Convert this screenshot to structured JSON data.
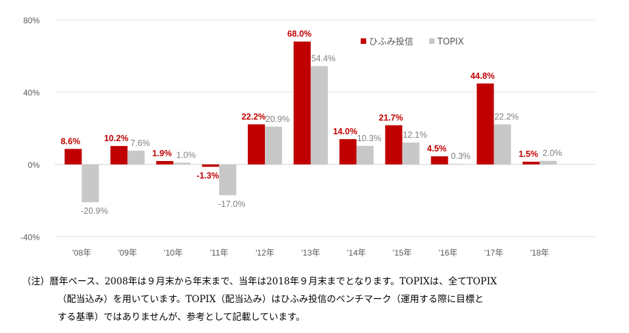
{
  "chart_data": {
    "type": "bar",
    "title": "",
    "xlabel": "",
    "ylabel": "",
    "ylim": [
      -40,
      80
    ],
    "yticks": [
      -40,
      0,
      40,
      80
    ],
    "ytick_labels": [
      "-40%",
      "0%",
      "40%",
      "80%"
    ],
    "categories": [
      "'08年",
      "'09年",
      "'10年",
      "'11年",
      "'12年",
      "'13年",
      "'14年",
      "'15年",
      "'16年",
      "'17年",
      "'18年"
    ],
    "series": [
      {
        "name": "ひふみ投信",
        "color": "#c00000",
        "values": [
          8.6,
          10.2,
          1.9,
          -1.3,
          22.2,
          68.0,
          14.0,
          21.7,
          4.5,
          44.8,
          1.5
        ],
        "labels": [
          "8.6%",
          "10.2%",
          "1.9%",
          "-1.3%",
          "22.2%",
          "68.0%",
          "14.0%",
          "21.7%",
          "4.5%",
          "44.8%",
          "1.5%"
        ]
      },
      {
        "name": "TOPIX",
        "color": "#c8c8c8",
        "values": [
          -20.9,
          7.6,
          1.0,
          -17.0,
          20.9,
          54.4,
          10.3,
          12.1,
          0.3,
          22.2,
          2.0
        ],
        "labels": [
          "-20.9%",
          "7.6%",
          "1.0%",
          "-17.0%",
          "20.9%",
          "54.4%",
          "10.3%",
          "12.1%",
          "0.3%",
          "22.2%",
          "2.0%"
        ]
      }
    ],
    "legend_position": "top-right",
    "grid": true
  },
  "note": {
    "line1": "（注）暦年ベース、2008年は９月末から年末まで、当年は2018年９月末までとなります。TOPIXは、全てTOPIX",
    "line2": "（配当込み）を用いています。TOPIX（配当込み）はひふみ投信のベンチマーク（運用する際に目標と",
    "line3": "する基準）ではありませんが、参考として記載しています。"
  }
}
